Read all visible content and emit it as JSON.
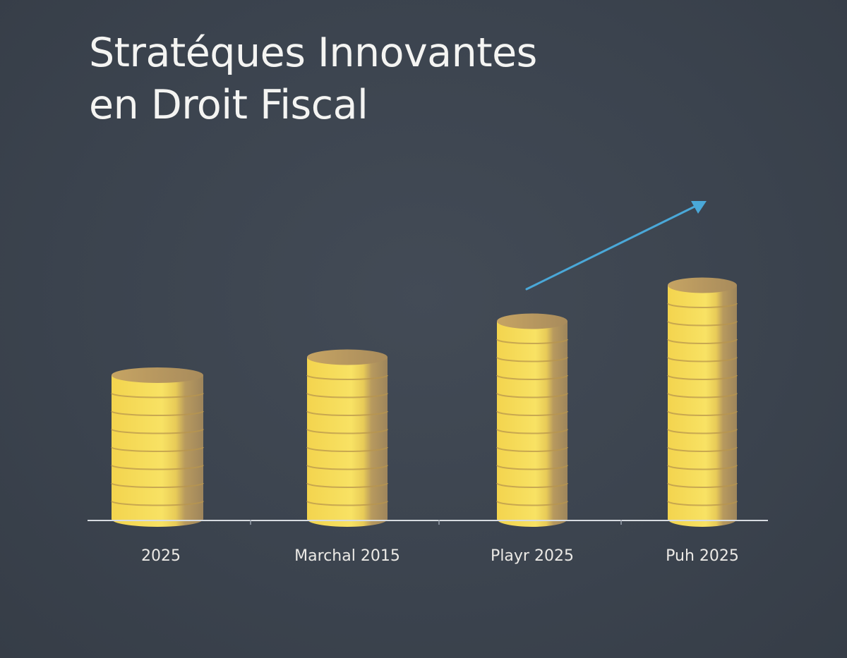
{
  "title_lines": [
    "Stratéques Innovantes",
    "en Droit Fiscal"
  ],
  "colors": {
    "background": "#3d4550",
    "coin_light": "#f7df5c",
    "coin_mid": "#d9bc52",
    "coin_shadow": "#a58a5c",
    "coin_top": "#b8975e",
    "baseline": "#d7dbe0",
    "trend_arrow": "#4aa8d8",
    "text": "#f4f4f2"
  },
  "chart_data": {
    "type": "bar",
    "title": "Stratéques Innovantes en Droit Fiscal",
    "categories": [
      "2025",
      "Marchal 2015",
      "Playr 2025",
      "Puh 2025"
    ],
    "values": [
      8,
      9,
      11,
      13
    ],
    "xlabel": "",
    "ylabel": "",
    "grid": false,
    "legend": "none",
    "annotations": [
      "trend-arrow-up"
    ]
  }
}
